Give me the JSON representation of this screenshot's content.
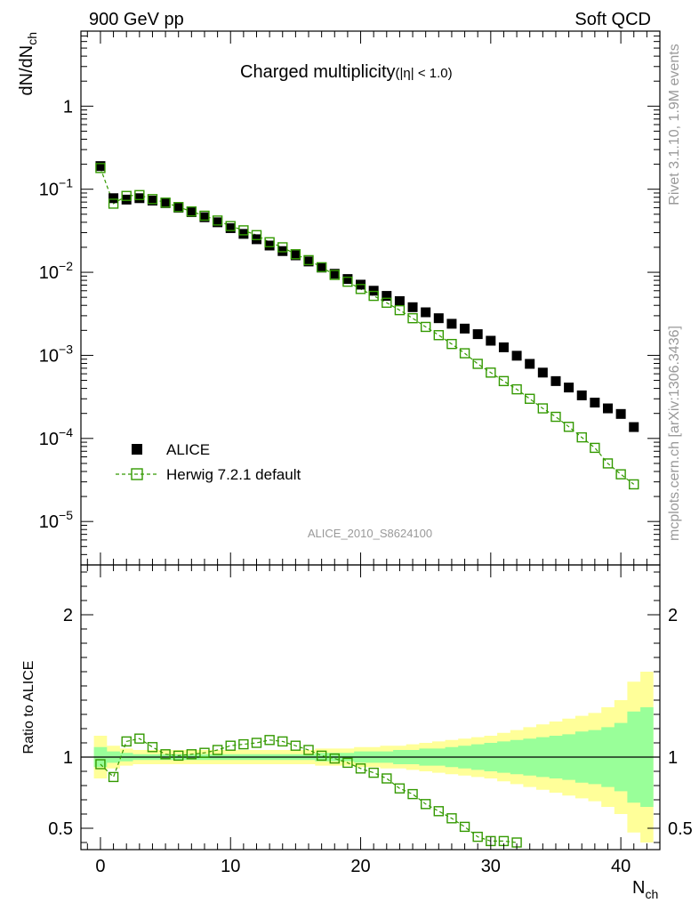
{
  "header": {
    "left": "900 GeV pp",
    "right": "Soft QCD"
  },
  "side_text": {
    "rivet": "Rivet 3.1.10,  1.9M events",
    "source": "mcplots.cern.ch [arXiv:1306.3436]"
  },
  "colors": {
    "data": "#000000",
    "mc": "#339900",
    "band_inner": "#99ff99",
    "band_outer": "#ffff99"
  },
  "chart_data": [
    {
      "type": "scatter",
      "title_main": "Charged multiplicity",
      "title_sub": "(|η| < 1.0)",
      "ylabel_base": "dN/dN",
      "ylabel_sub": "ch",
      "yscale": "log",
      "xlim": [
        -1.5,
        43
      ],
      "ylim": [
        3e-06,
        8
      ],
      "analysis_label": "ALICE_2010_S8624100",
      "x_ticks": [
        "0",
        "10",
        "20",
        "30",
        "40"
      ],
      "y_ticks": [
        {
          "value": 1e-05,
          "mantissa": "10",
          "exp": "−5"
        },
        {
          "value": 0.0001,
          "mantissa": "10",
          "exp": "−4"
        },
        {
          "value": 0.001,
          "mantissa": "10",
          "exp": "−3"
        },
        {
          "value": 0.01,
          "mantissa": "10",
          "exp": "−2"
        },
        {
          "value": 0.1,
          "mantissa": "10",
          "exp": "−1"
        },
        {
          "value": 1,
          "mantissa": "1",
          "exp": ""
        }
      ],
      "legend": [
        "ALICE",
        "Herwig 7.2.1 default"
      ],
      "series": [
        {
          "name": "ALICE",
          "x": [
            0,
            1,
            2,
            3,
            4,
            5,
            6,
            7,
            8,
            9,
            10,
            11,
            12,
            13,
            14,
            15,
            16,
            17,
            18,
            19,
            20,
            21,
            22,
            23,
            24,
            25,
            26,
            27,
            28,
            29,
            30,
            31,
            32,
            33,
            34,
            35,
            36,
            37,
            38,
            39,
            40,
            41
          ],
          "y": [
            0.19,
            0.078,
            0.075,
            0.078,
            0.073,
            0.068,
            0.06,
            0.053,
            0.046,
            0.04,
            0.034,
            0.029,
            0.025,
            0.021,
            0.018,
            0.016,
            0.0135,
            0.0114,
            0.0096,
            0.0083,
            0.0071,
            0.006,
            0.0052,
            0.0045,
            0.0038,
            0.0033,
            0.0028,
            0.0024,
            0.0021,
            0.0018,
            0.0015,
            0.00125,
            0.00099,
            0.00079,
            0.00062,
            0.00049,
            0.00041,
            0.00033,
            0.00027,
            0.00023,
            0.000197,
            0.000137
          ]
        },
        {
          "name": "Herwig 7.2.1 default",
          "x": [
            0,
            1,
            2,
            3,
            4,
            5,
            6,
            7,
            8,
            9,
            10,
            11,
            12,
            13,
            14,
            15,
            16,
            17,
            18,
            19,
            20,
            21,
            22,
            23,
            24,
            25,
            26,
            27,
            28,
            29,
            30,
            31,
            32,
            33,
            34,
            35,
            36,
            37,
            38,
            39,
            40,
            41
          ],
          "y": [
            0.18,
            0.067,
            0.083,
            0.085,
            0.076,
            0.069,
            0.061,
            0.054,
            0.048,
            0.042,
            0.036,
            0.032,
            0.028,
            0.023,
            0.02,
            0.0165,
            0.014,
            0.0115,
            0.0093,
            0.0077,
            0.0063,
            0.0052,
            0.0043,
            0.0035,
            0.0028,
            0.0022,
            0.00175,
            0.00137,
            0.00106,
            0.00079,
            0.00062,
            0.00049,
            0.00039,
            0.0003,
            0.00023,
            0.000182,
            0.000138,
            0.000103,
            7.7e-05,
            5e-05,
            3.7e-05,
            2.8e-05
          ]
        }
      ]
    },
    {
      "type": "scatter",
      "ylabel": "Ratio to ALICE",
      "xlabel_base": "N",
      "xlabel_sub": "ch",
      "xlim": [
        -1.5,
        43
      ],
      "ylim": [
        0.35,
        2.35
      ],
      "y_ticks": [
        "0.5",
        "1",
        "2"
      ],
      "y_tick_values": [
        0.5,
        1,
        2
      ],
      "reference_line": 1,
      "bands": {
        "x": [
          -0.5,
          0.5,
          1.5,
          2.5,
          3.5,
          4.5,
          5.5,
          6.5,
          7.5,
          8.5,
          9.5,
          10.5,
          11.5,
          12.5,
          13.5,
          14.5,
          15.5,
          16.5,
          17.5,
          18.5,
          19.5,
          20.5,
          21.5,
          22.5,
          23.5,
          24.5,
          25.5,
          26.5,
          27.5,
          28.5,
          29.5,
          30.5,
          31.5,
          32.5,
          33.5,
          34.5,
          35.5,
          36.5,
          37.5,
          38.5,
          39.5,
          40.5,
          41.5,
          42.5
        ],
        "outer": [
          0.15,
          0.08,
          0.06,
          0.05,
          0.05,
          0.05,
          0.05,
          0.05,
          0.05,
          0.05,
          0.05,
          0.05,
          0.05,
          0.05,
          0.05,
          0.05,
          0.05,
          0.06,
          0.06,
          0.06,
          0.07,
          0.07,
          0.08,
          0.08,
          0.09,
          0.1,
          0.11,
          0.12,
          0.13,
          0.14,
          0.15,
          0.17,
          0.19,
          0.21,
          0.23,
          0.25,
          0.27,
          0.29,
          0.31,
          0.35,
          0.4,
          0.53,
          0.6
        ],
        "inner": [
          0.07,
          0.04,
          0.03,
          0.02,
          0.02,
          0.02,
          0.02,
          0.02,
          0.02,
          0.02,
          0.02,
          0.02,
          0.02,
          0.02,
          0.02,
          0.02,
          0.02,
          0.03,
          0.03,
          0.03,
          0.04,
          0.04,
          0.04,
          0.05,
          0.05,
          0.06,
          0.06,
          0.07,
          0.08,
          0.09,
          0.1,
          0.11,
          0.12,
          0.13,
          0.14,
          0.15,
          0.16,
          0.18,
          0.19,
          0.21,
          0.24,
          0.32,
          0.35
        ]
      },
      "series": [
        {
          "name": "Herwig 7.2.1 default / ALICE",
          "x": [
            0,
            1,
            2,
            3,
            4,
            5,
            6,
            7,
            8,
            9,
            10,
            11,
            12,
            13,
            14,
            15,
            16,
            17,
            18,
            19,
            20,
            21,
            22,
            23,
            24,
            25,
            26,
            27,
            28,
            29,
            30,
            31,
            32
          ],
          "y": [
            0.95,
            0.86,
            1.11,
            1.13,
            1.07,
            1.02,
            1.01,
            1.02,
            1.03,
            1.05,
            1.08,
            1.09,
            1.1,
            1.12,
            1.11,
            1.08,
            1.05,
            1.01,
            0.99,
            0.96,
            0.92,
            0.89,
            0.85,
            0.78,
            0.74,
            0.67,
            0.62,
            0.57,
            0.51,
            0.44,
            0.41,
            0.41,
            0.4
          ]
        }
      ]
    }
  ]
}
